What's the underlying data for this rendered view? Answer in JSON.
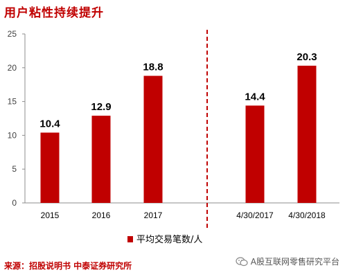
{
  "title": "用户粘性持续提升",
  "source": "来源：招股说明书 中泰证券研究所",
  "watermark": {
    "text": "A股互联网零售研究平台",
    "icon": "wechat-icon"
  },
  "colors": {
    "bar": "#c00000",
    "title": "#c00000",
    "divider": "#c00000"
  },
  "chart_data": {
    "type": "bar",
    "categories": [
      "2015",
      "2016",
      "2017",
      "4/30/2017",
      "4/30/2018"
    ],
    "values": [
      10.4,
      12.9,
      18.8,
      14.4,
      20.3
    ],
    "data_labels": [
      "10.4",
      "12.9",
      "18.8",
      "14.4",
      "20.3"
    ],
    "series": [
      {
        "name": "平均交易笔数/人",
        "values": [
          10.4,
          12.9,
          18.8,
          14.4,
          20.3
        ]
      }
    ],
    "y_ticks": [
      "0",
      "5",
      "10",
      "15",
      "20",
      "25"
    ],
    "ylim": [
      0,
      25
    ],
    "title": "",
    "xlabel": "",
    "ylabel": "",
    "grid": false,
    "legend_position": "bottom-center",
    "divider": "dashed vertical line between 2017 and 4/30/2017"
  }
}
